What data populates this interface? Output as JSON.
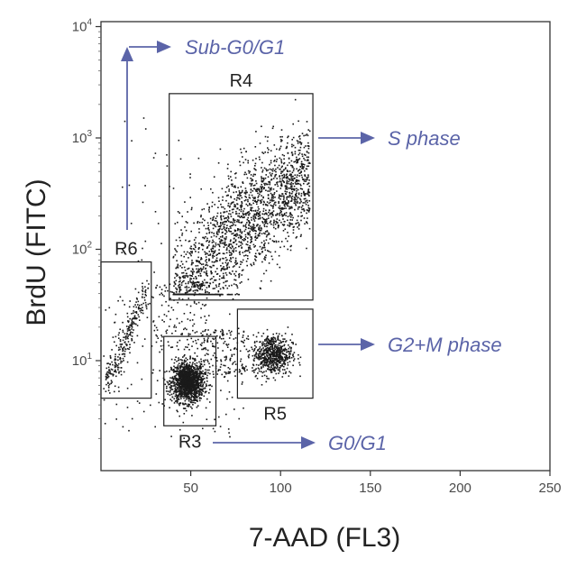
{
  "chart_data": {
    "type": "scatter",
    "xlabel": "7-AAD (FL3)",
    "ylabel": "BrdU (FITC)",
    "xlim": [
      0,
      250
    ],
    "x_ticks": [
      50,
      100,
      150,
      200,
      250
    ],
    "y_scale": "log",
    "ylim": [
      1,
      10000
    ],
    "y_ticks": [
      {
        "value": 10,
        "base": "10",
        "exp": "1"
      },
      {
        "value": 100,
        "base": "10",
        "exp": "2"
      },
      {
        "value": 1000,
        "base": "10",
        "exp": "3"
      },
      {
        "value": 10000,
        "base": "10",
        "exp": "4"
      }
    ],
    "grid": false,
    "regions": [
      {
        "id": "r4",
        "label": "R4",
        "x": [
          38,
          118
        ],
        "y": [
          35,
          2500
        ],
        "label_pos": "top"
      },
      {
        "id": "r6",
        "label": "R6",
        "x": [
          0,
          28
        ],
        "y": [
          4.6,
          77
        ],
        "label_pos": "top"
      },
      {
        "id": "r5",
        "label": "R5",
        "x": [
          76,
          118
        ],
        "y": [
          4.6,
          29
        ],
        "label_pos": "bottom"
      },
      {
        "id": "r3",
        "label": "R3",
        "x": [
          35,
          64
        ],
        "y": [
          2.6,
          16.5
        ],
        "label_pos": "bottom"
      }
    ],
    "populations": [
      {
        "id": "s-phase",
        "region": "R4",
        "label": "S phase"
      },
      {
        "id": "g2m-phase",
        "region": "R5",
        "label": "G2+M phase"
      },
      {
        "id": "g0g1-phase",
        "region": "R3",
        "label": "G0/G1"
      },
      {
        "id": "sub-g0g1",
        "region": "R6",
        "label": "Sub-G0/G1"
      }
    ],
    "dot_color": "#1a1a1a",
    "annotation_color": "#5b64a8"
  }
}
